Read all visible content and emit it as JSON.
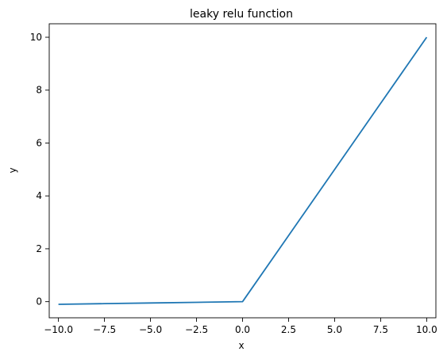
{
  "chart_data": {
    "type": "line",
    "title": "leaky relu function",
    "xlabel": "x",
    "ylabel": "y",
    "xlim": [
      -10.5,
      10.5
    ],
    "ylim": [
      -0.61,
      10.51
    ],
    "xticks": [
      -10.0,
      -7.5,
      -5.0,
      -2.5,
      0.0,
      2.5,
      5.0,
      7.5,
      10.0
    ],
    "xtick_labels": [
      "−10.0",
      "−7.5",
      "−5.0",
      "−2.5",
      "0.0",
      "2.5",
      "5.0",
      "7.5",
      "10.0"
    ],
    "yticks": [
      0,
      2,
      4,
      6,
      8,
      10
    ],
    "ytick_labels": [
      "0",
      "2",
      "4",
      "6",
      "8",
      "10"
    ],
    "grid": false,
    "series": [
      {
        "color": "#1f77b4",
        "x": [
          -10.0,
          -7.5,
          -5.0,
          -2.5,
          0.0,
          0.1,
          2.5,
          5.0,
          7.5,
          10.0
        ],
        "y": [
          -0.1,
          -0.075,
          -0.05,
          -0.025,
          0.0,
          0.1,
          2.5,
          5.0,
          7.5,
          10.0
        ]
      }
    ]
  }
}
